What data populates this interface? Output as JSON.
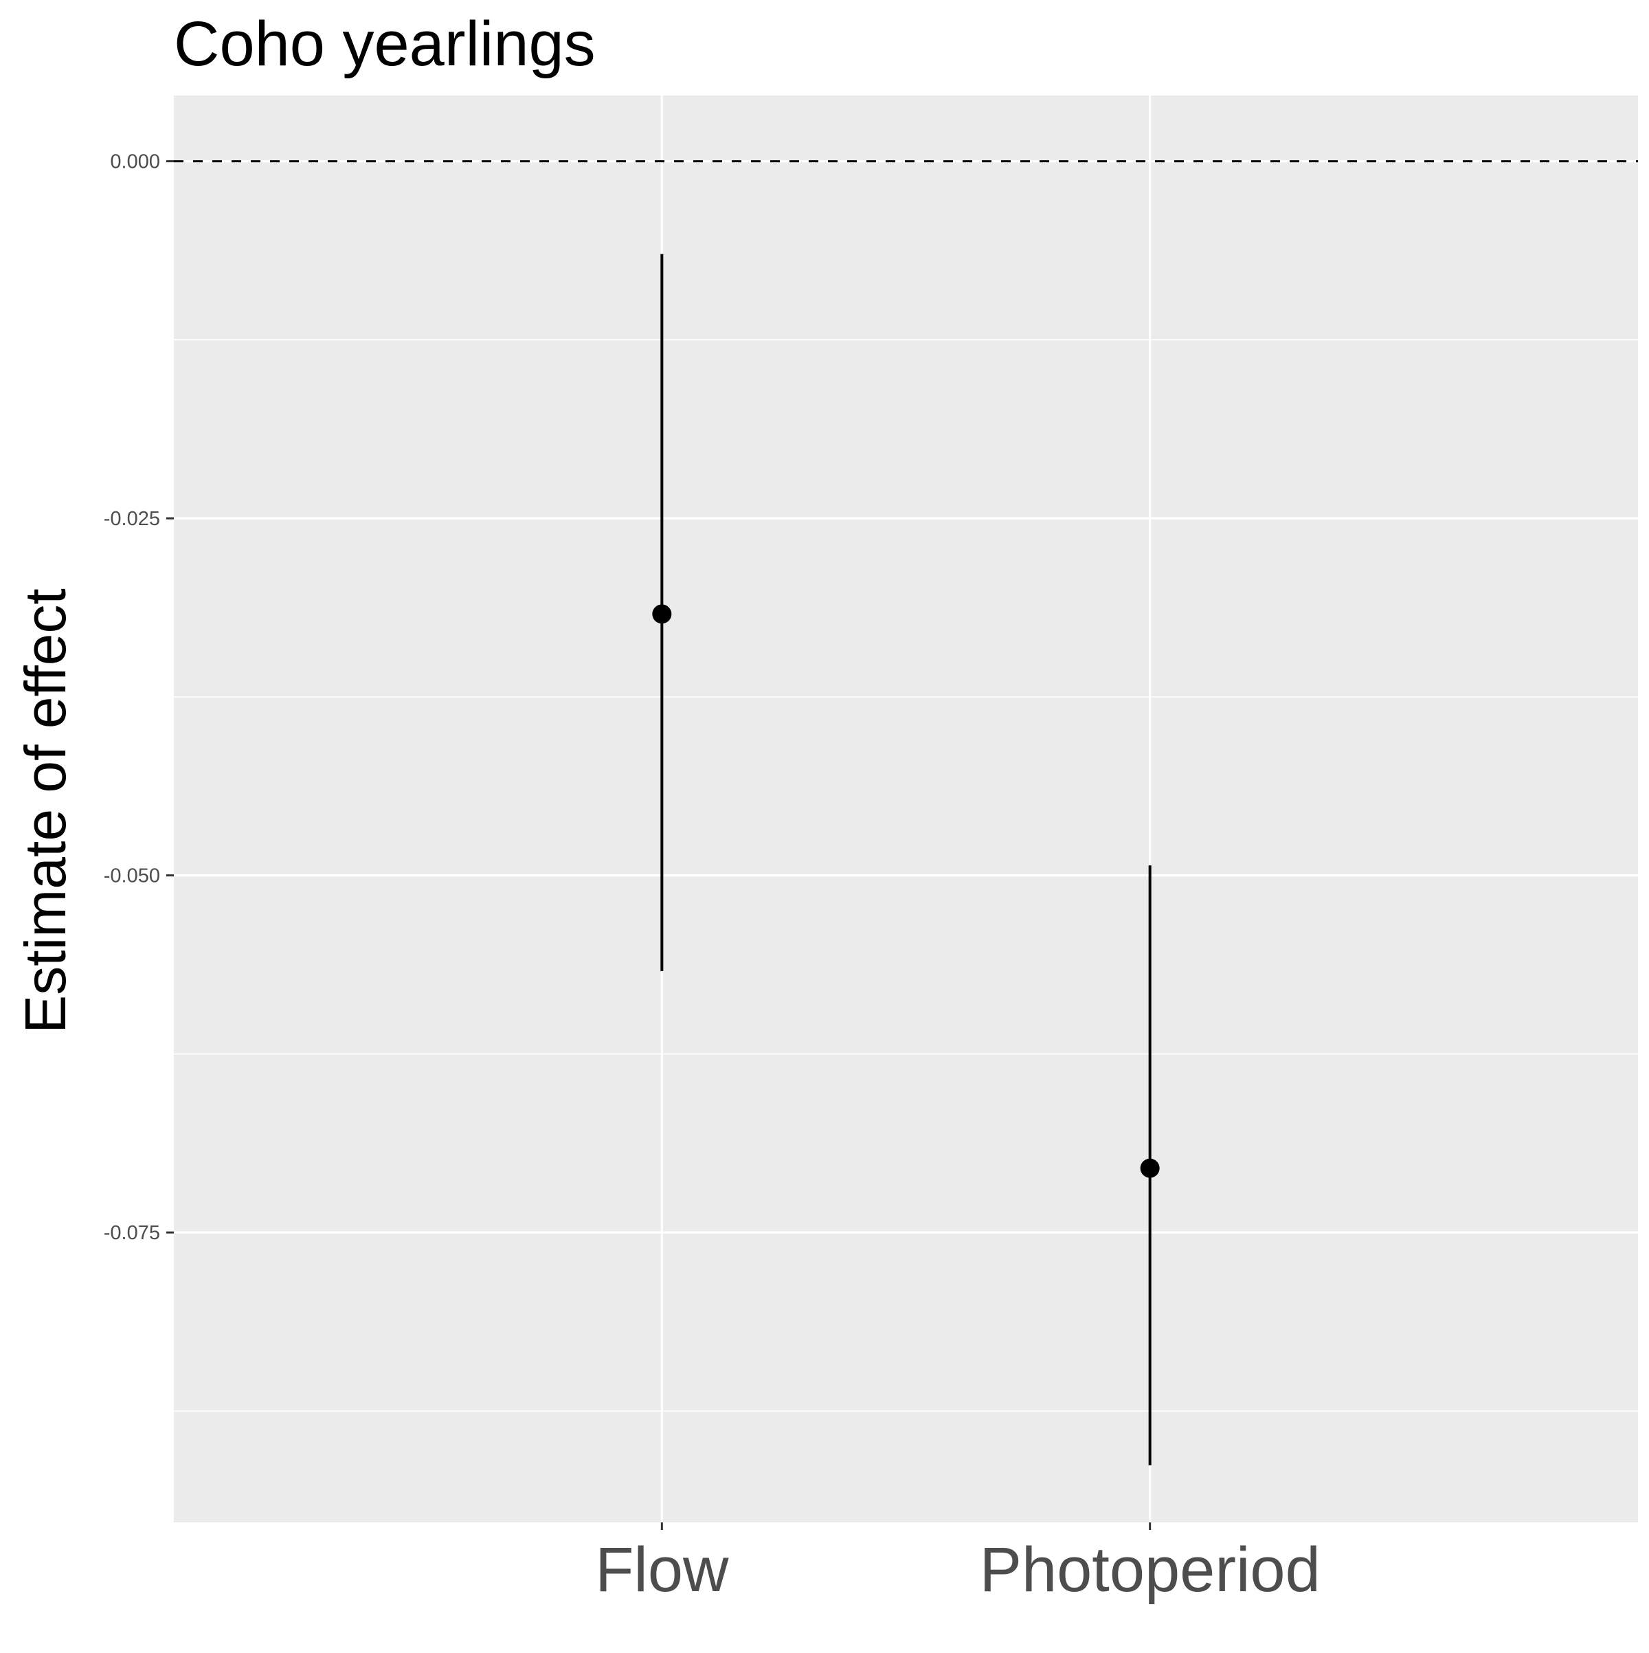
{
  "chart_data": {
    "type": "pointrange",
    "title": "Coho yearlings",
    "xlabel": "",
    "ylabel": "Estimate of effect",
    "categories": [
      "Flow",
      "Photoperiod"
    ],
    "estimates": [
      -0.0317,
      -0.0705
    ],
    "lower": [
      -0.0567,
      -0.0913
    ],
    "upper": [
      -0.0065,
      -0.0493
    ],
    "ylim": [
      -0.0953,
      0.0046
    ],
    "yticks": [
      0.0,
      -0.025,
      -0.05,
      -0.075
    ],
    "ytick_labels": [
      "0.000",
      "-0.025",
      "-0.050",
      "-0.075"
    ],
    "reference_line": 0.0,
    "grid": true
  },
  "colors": {
    "panel": "#ebebeb",
    "grid": "#ffffff",
    "marks": "#000000",
    "tick_text": "#4d4d4d"
  }
}
